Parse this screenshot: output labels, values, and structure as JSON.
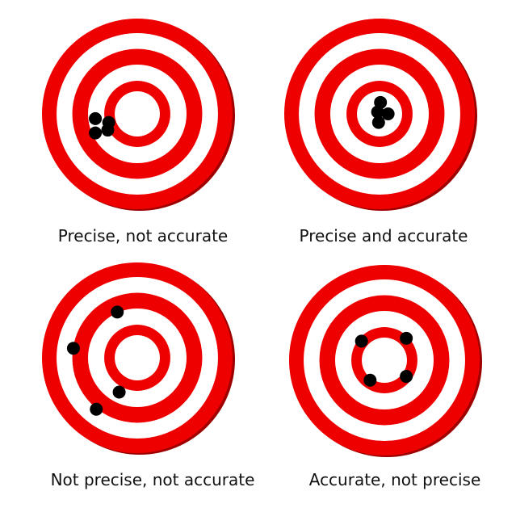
{
  "colors": {
    "ring_red": "#ee0000",
    "ring_white": "#ffffff",
    "shadow": "#9e0000",
    "shot": "#000000"
  },
  "targets": [
    {
      "id": "precise-not-accurate",
      "caption": "Precise, not accurate",
      "shots": [
        {
          "dx": -0.3,
          "dy": 0.09
        },
        {
          "dx": -0.44,
          "dy": 0.05
        },
        {
          "dx": -0.31,
          "dy": 0.17
        },
        {
          "dx": -0.44,
          "dy": 0.2
        }
      ]
    },
    {
      "id": "precise-and-accurate",
      "caption": "Precise and accurate",
      "shots": [
        {
          "dx": 0.01,
          "dy": -0.12
        },
        {
          "dx": -0.02,
          "dy": -0.02
        },
        {
          "dx": 0.09,
          "dy": 0.0
        },
        {
          "dx": -0.01,
          "dy": 0.09
        }
      ]
    },
    {
      "id": "not-precise-not-accurate",
      "caption": "Not precise, not accurate",
      "shots": [
        {
          "dx": -0.21,
          "dy": -0.48
        },
        {
          "dx": -0.67,
          "dy": -0.1
        },
        {
          "dx": -0.19,
          "dy": 0.36
        },
        {
          "dx": -0.43,
          "dy": 0.54
        }
      ]
    },
    {
      "id": "accurate-not-precise",
      "caption": "Accurate, not precise",
      "shots": [
        {
          "dx": -0.24,
          "dy": -0.2
        },
        {
          "dx": 0.23,
          "dy": -0.23
        },
        {
          "dx": -0.15,
          "dy": 0.21
        },
        {
          "dx": 0.23,
          "dy": 0.17
        }
      ]
    }
  ]
}
